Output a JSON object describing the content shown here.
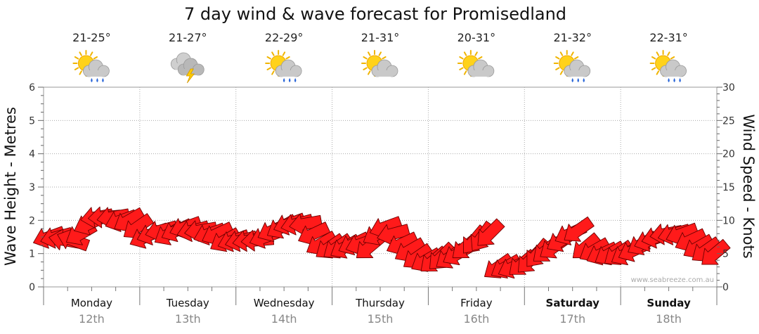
{
  "chart_data": {
    "type": "scatter",
    "title": "7 day wind & wave forecast for Promisedland",
    "ylabel_left": "Wave Height - Metres",
    "ylabel_right": "Wind Speed - Knots",
    "y_left_range": [
      0,
      6
    ],
    "y_left_ticks": [
      "0",
      "1",
      "2",
      "3",
      "4",
      "5",
      "6"
    ],
    "y_right_range": [
      0,
      30
    ],
    "y_right_ticks": [
      "0",
      "5",
      "10",
      "15",
      "20",
      "25",
      "30"
    ],
    "grid": true,
    "credit": "www.seabreeze.com.au",
    "arrow_color": "#ff1a1a",
    "days": [
      {
        "name": "Monday",
        "date": "12th",
        "temp": "21-25°",
        "icon": "sun-cloud-rain-icon",
        "bold": false
      },
      {
        "name": "Tuesday",
        "date": "13th",
        "temp": "21-27°",
        "icon": "storm-cloud-icon",
        "bold": false
      },
      {
        "name": "Wednesday",
        "date": "14th",
        "temp": "22-29°",
        "icon": "sun-cloud-rain-icon",
        "bold": false
      },
      {
        "name": "Thursday",
        "date": "15th",
        "temp": "21-31°",
        "icon": "sun-cloud-icon",
        "bold": false
      },
      {
        "name": "Friday",
        "date": "16th",
        "temp": "20-31°",
        "icon": "sun-cloud-icon",
        "bold": false
      },
      {
        "name": "Saturday",
        "date": "17th",
        "temp": "21-32°",
        "icon": "sun-cloud-rain-icon",
        "bold": true
      },
      {
        "name": "Sunday",
        "date": "18th",
        "temp": "22-31°",
        "icon": "sun-cloud-rain-icon",
        "bold": true
      }
    ],
    "series": [
      {
        "name": "Wind Speed",
        "unit": "knots",
        "x_day": [
          0.0,
          0.08,
          0.17,
          0.25,
          0.33,
          0.42,
          0.5,
          0.58,
          0.67,
          0.75,
          0.83,
          0.92,
          1.0,
          1.08,
          1.17,
          1.25,
          1.33,
          1.42,
          1.5,
          1.58,
          1.67,
          1.75,
          1.83,
          1.92,
          2.0,
          2.08,
          2.17,
          2.25,
          2.33,
          2.42,
          2.5,
          2.58,
          2.67,
          2.75,
          2.83,
          2.92,
          3.0,
          3.08,
          3.17,
          3.25,
          3.33,
          3.42,
          3.5,
          3.58,
          3.67,
          3.75,
          3.83,
          3.92,
          4.0,
          4.08,
          4.17,
          4.25,
          4.33,
          4.42,
          4.5,
          4.58,
          4.67,
          4.75,
          4.83,
          4.92,
          5.0,
          5.08,
          5.17,
          5.25,
          5.33,
          5.42,
          5.5,
          5.58,
          5.67,
          5.75,
          5.83,
          5.92,
          6.0,
          6.08,
          6.17,
          6.25,
          6.33,
          6.42,
          6.5,
          6.58,
          6.67,
          6.75,
          6.83,
          6.92
        ],
        "values": [
          7.5,
          7.5,
          7,
          7,
          8,
          9.5,
          10.5,
          10.5,
          10.5,
          10,
          10,
          9,
          7.5,
          8,
          8.5,
          8,
          8.5,
          9,
          8.5,
          8.5,
          8,
          8,
          7,
          7,
          7,
          7,
          7,
          7.5,
          8.5,
          9,
          9.5,
          9.5,
          9.5,
          8,
          6.5,
          6,
          6,
          6,
          6.5,
          6.5,
          6,
          8,
          9,
          8,
          6.5,
          5.5,
          4.5,
          4,
          4,
          4.5,
          4.5,
          5,
          6,
          7,
          7.5,
          8,
          3,
          3,
          3,
          3.5,
          4,
          5,
          5.5,
          6,
          7,
          8,
          8.5,
          6,
          5.5,
          5,
          5,
          5,
          5,
          5.5,
          6.5,
          7,
          7.5,
          8,
          8,
          8,
          7,
          6,
          5.5,
          5
        ]
      }
    ]
  }
}
